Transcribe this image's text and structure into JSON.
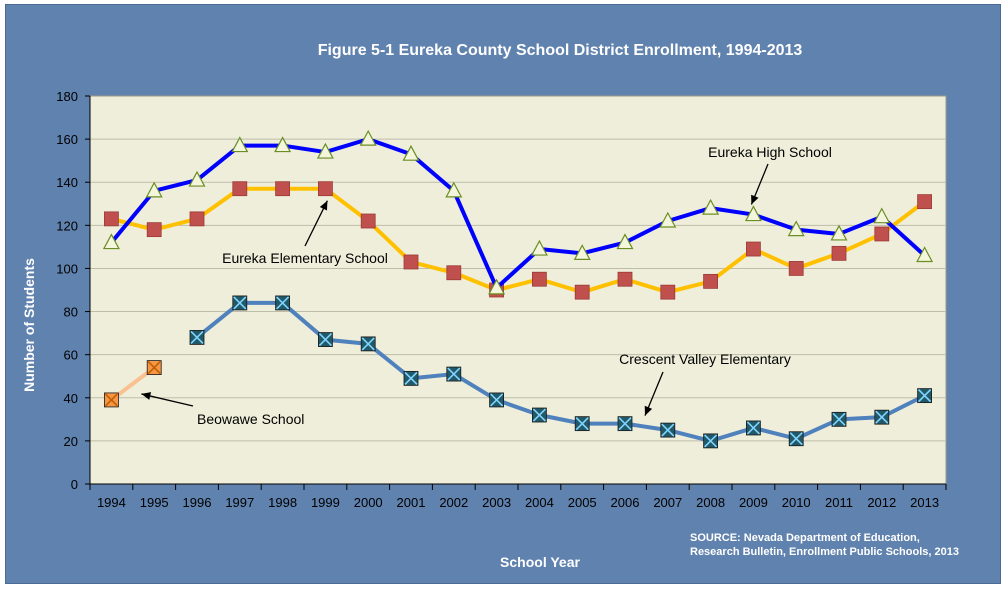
{
  "chart_data": {
    "type": "line",
    "title": "Figure 5-1 Eureka County School District Enrollment, 1994-2013",
    "xlabel": "School Year",
    "ylabel": "Number of Students",
    "ylim": [
      0,
      180
    ],
    "yticks": [
      0,
      20,
      40,
      60,
      80,
      100,
      120,
      140,
      160,
      180
    ],
    "grid": true,
    "categories": [
      "1994",
      "1995",
      "1996",
      "1997",
      "1998",
      "1999",
      "2000",
      "2001",
      "2002",
      "2003",
      "2004",
      "2005",
      "2006",
      "2007",
      "2008",
      "2009",
      "2010",
      "2011",
      "2012",
      "2013"
    ],
    "series": [
      {
        "name": "Eureka High School",
        "color": "#0000FF",
        "marker": "triangle",
        "marker_color": "#F3F6DC",
        "values": [
          112,
          136,
          141,
          157,
          157,
          154,
          160,
          153,
          136,
          91,
          109,
          107,
          112,
          122,
          128,
          125,
          118,
          116,
          124,
          106
        ]
      },
      {
        "name": "Eureka Elementary School",
        "color": "#FFC000",
        "marker": "square",
        "marker_color": "#C0504D",
        "values": [
          123,
          118,
          123,
          137,
          137,
          137,
          122,
          103,
          98,
          90,
          95,
          89,
          95,
          89,
          94,
          109,
          100,
          107,
          116,
          131
        ]
      },
      {
        "name": "Crescent Valley Elementary",
        "color": "#4F81BD",
        "marker": "xsquare",
        "marker_color": "#215968",
        "values": [
          null,
          null,
          68,
          84,
          84,
          67,
          65,
          49,
          51,
          39,
          32,
          28,
          28,
          25,
          20,
          26,
          21,
          30,
          31,
          41
        ]
      },
      {
        "name": "Beowawe School",
        "color": "#FAC090",
        "marker": "xsquare",
        "marker_color": "#F79646",
        "values": [
          39,
          54,
          null,
          null,
          null,
          null,
          null,
          null,
          null,
          null,
          null,
          null,
          null,
          null,
          null,
          null,
          null,
          null,
          null,
          null
        ]
      }
    ],
    "source_lines": [
      "SOURCE: Nevada Department of Education,",
      "Research Bulletin, Enrollment Public Schools, 2013"
    ],
    "colors": {
      "background": "#6082AE",
      "plot_area": "#EEEEDA",
      "gridline": "#BDBDAA"
    }
  }
}
